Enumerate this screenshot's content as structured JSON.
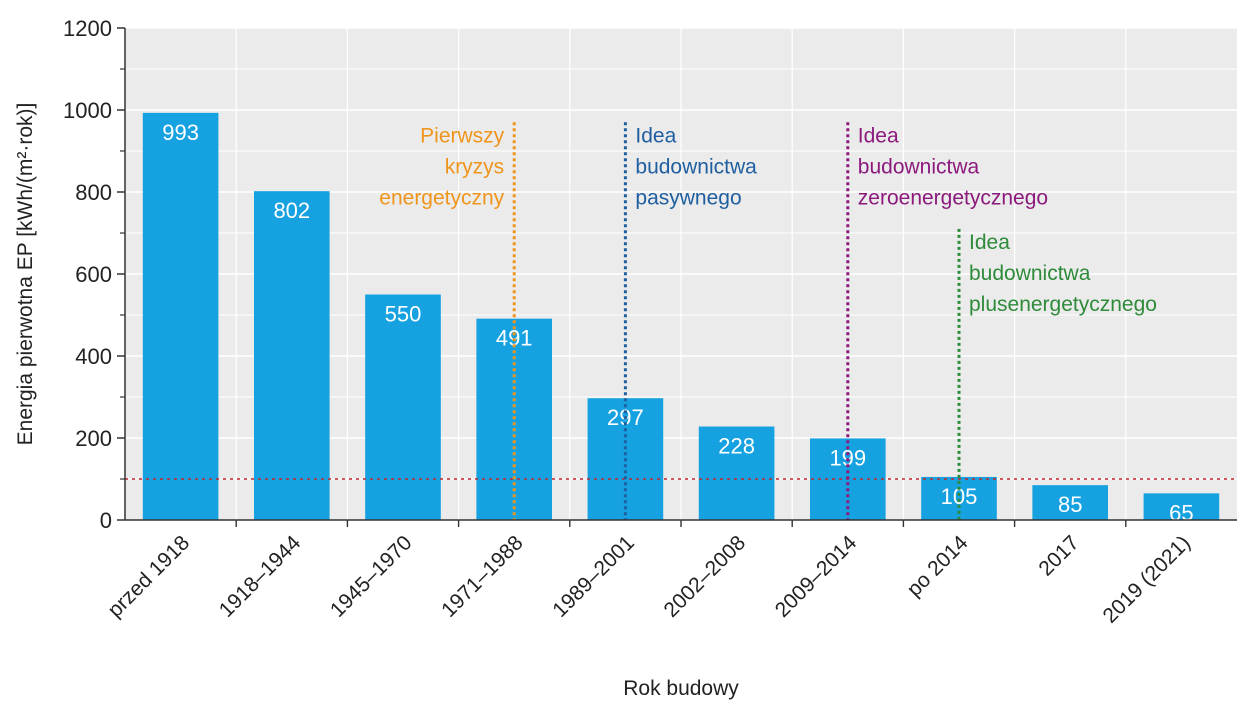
{
  "chart_data": {
    "type": "bar",
    "categories": [
      "przed 1918",
      "1918–1944",
      "1945–1970",
      "1971–1988",
      "1989–2001",
      "2002–2008",
      "2009–2014",
      "po 2014",
      "2017",
      "2019 (2021)"
    ],
    "values": [
      993,
      802,
      550,
      491,
      297,
      228,
      199,
      105,
      85,
      65
    ],
    "xlabel": "Rok budowy",
    "ylabel": "Energia pierwotna EP [kWh/(m²·rok)]",
    "ylim": [
      0,
      1200
    ],
    "yticks": [
      0,
      200,
      400,
      600,
      800,
      1000,
      1200
    ],
    "grid": true,
    "bar_color": "#16a1e0",
    "reference_line": {
      "value": 100,
      "color": "#c0272d",
      "style": "dotted"
    },
    "annotations": [
      {
        "lines": [
          "Pierwszy",
          "kryzys",
          "energetyczny"
        ],
        "x_position": 3.5,
        "color": "#f0951c",
        "align": "right"
      },
      {
        "lines": [
          "Idea",
          "budownictwa",
          "pasywnego"
        ],
        "x_position": 4.5,
        "color": "#1f5fa0",
        "align": "left"
      },
      {
        "lines": [
          "Idea",
          "budownictwa",
          "zeroenergetycznego"
        ],
        "x_position": 6.5,
        "color": "#8c1a7d",
        "align": "left"
      },
      {
        "lines": [
          "Idea",
          "budownictwa",
          "plusenergetycznego"
        ],
        "x_position": 7.5,
        "color": "#2e8b3a",
        "align": "left"
      }
    ]
  }
}
